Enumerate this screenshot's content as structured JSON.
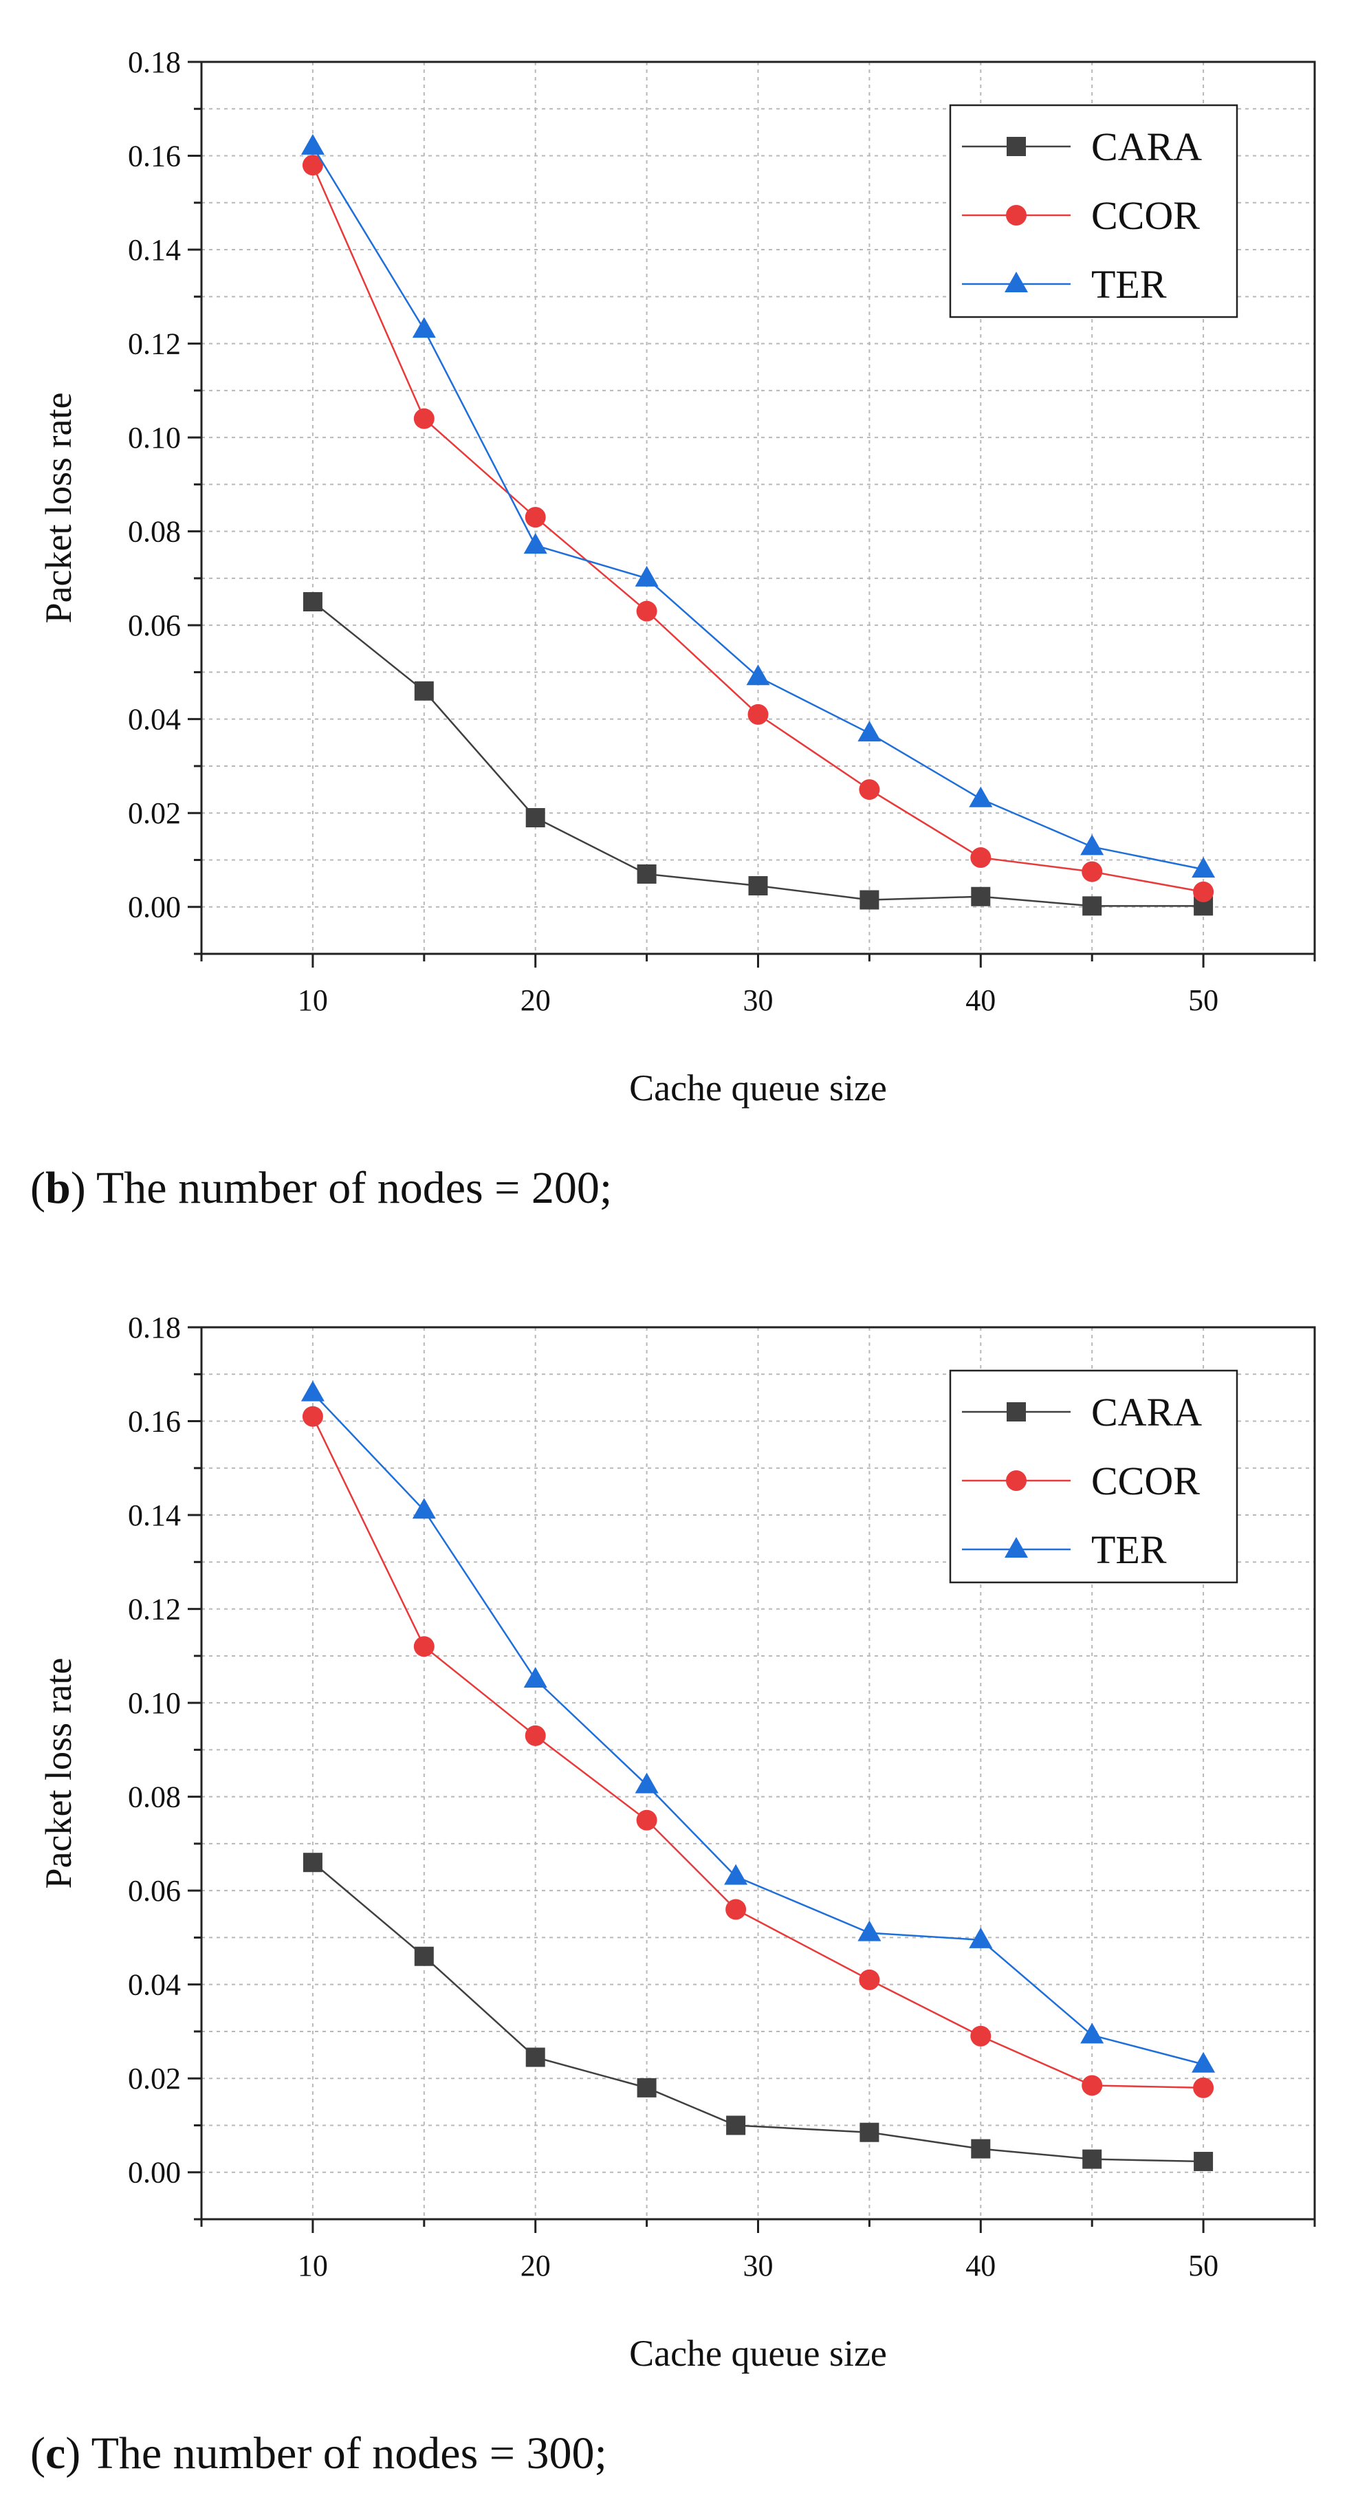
{
  "chart_data": [
    {
      "type": "line",
      "caption_letter": "b",
      "caption_text": " The number of nodes = 200;",
      "xlabel": "Cache queue size",
      "ylabel": "Packet loss rate",
      "xlim": [
        5,
        55
      ],
      "ylim": [
        -0.01,
        0.18
      ],
      "xticks": [
        "10",
        "20",
        "30",
        "40",
        "50"
      ],
      "yticks": [
        "0.00",
        "0.02",
        "0.04",
        "0.06",
        "0.08",
        "0.10",
        "0.12",
        "0.14",
        "0.16",
        "0.18"
      ],
      "grid": true,
      "legend_position": "top-right",
      "series": [
        {
          "name": "CARA",
          "color": "#404040",
          "marker": "square",
          "x": [
            10,
            15,
            20,
            25,
            30,
            35,
            40,
            45,
            50
          ],
          "values": [
            0.065,
            0.046,
            0.019,
            0.007,
            0.0045,
            0.0015,
            0.0022,
            0.0002,
            0.0002
          ]
        },
        {
          "name": "CCOR",
          "color": "#e83a3a",
          "marker": "circle",
          "x": [
            10,
            15,
            20,
            25,
            30,
            35,
            40,
            45,
            50
          ],
          "values": [
            0.158,
            0.104,
            0.083,
            0.063,
            0.041,
            0.025,
            0.0105,
            0.0075,
            0.0032
          ]
        },
        {
          "name": "TER",
          "color": "#1e6fd9",
          "marker": "triangle",
          "x": [
            10,
            15,
            20,
            25,
            30,
            35,
            40,
            45,
            50
          ],
          "values": [
            0.162,
            0.123,
            0.077,
            0.07,
            0.049,
            0.037,
            0.023,
            0.0128,
            0.008
          ]
        }
      ]
    },
    {
      "type": "line",
      "caption_letter": "c",
      "caption_text": " The number of nodes = 300;",
      "xlabel": "Cache queue size",
      "ylabel": "Packet loss rate",
      "xlim": [
        5,
        55
      ],
      "ylim": [
        -0.01,
        0.18
      ],
      "xticks": [
        "10",
        "20",
        "30",
        "40",
        "50"
      ],
      "yticks": [
        "0.00",
        "0.02",
        "0.04",
        "0.06",
        "0.08",
        "0.10",
        "0.12",
        "0.14",
        "0.16",
        "0.18"
      ],
      "grid": true,
      "legend_position": "top-right",
      "series": [
        {
          "name": "CARA",
          "color": "#404040",
          "marker": "square",
          "x": [
            10,
            15,
            20,
            25,
            29,
            35,
            40,
            45,
            50
          ],
          "values": [
            0.066,
            0.046,
            0.0245,
            0.018,
            0.01,
            0.0085,
            0.005,
            0.0028,
            0.0023
          ]
        },
        {
          "name": "CCOR",
          "color": "#e83a3a",
          "marker": "circle",
          "x": [
            10,
            15,
            20,
            25,
            29,
            35,
            40,
            45,
            50
          ],
          "values": [
            0.161,
            0.112,
            0.093,
            0.075,
            0.056,
            0.041,
            0.029,
            0.0185,
            0.018
          ]
        },
        {
          "name": "TER",
          "color": "#1e6fd9",
          "marker": "triangle",
          "x": [
            10,
            15,
            20,
            25,
            29,
            35,
            40,
            45,
            50
          ],
          "values": [
            0.166,
            0.141,
            0.105,
            0.0825,
            0.063,
            0.051,
            0.0495,
            0.0292,
            0.023
          ]
        }
      ]
    }
  ]
}
